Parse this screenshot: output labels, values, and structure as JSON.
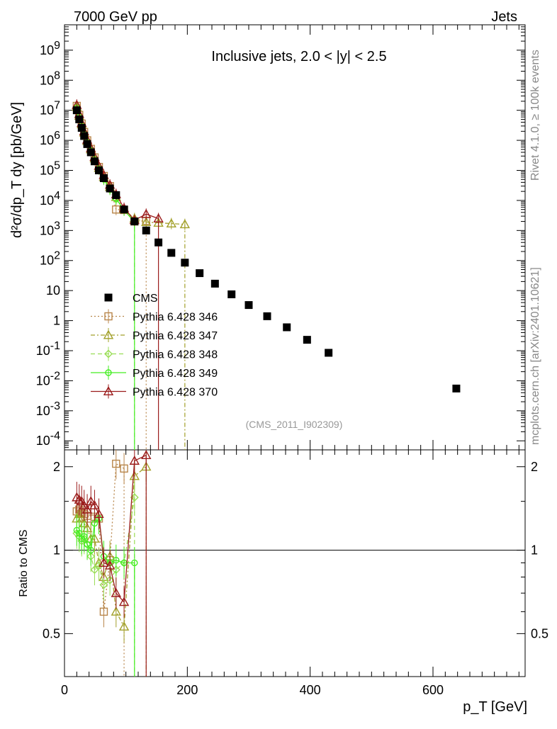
{
  "header": {
    "left": "7000 GeV pp",
    "right": "Jets"
  },
  "side_labels": {
    "rivet": "Rivet 4.1.0, ≥ 100k events",
    "mcplots": "mcplots.cern.ch [arXiv:2401.10621]"
  },
  "chart_data": {
    "type": "scatter",
    "title": "Inclusive jets, 2.0 < |y| < 2.5",
    "reference": "(CMS_2011_I902309)",
    "xlabel": "p_T [GeV]",
    "ylabel": "d²σ/dp_T dy [pb/GeV]",
    "ratio_ylabel": "Ratio to CMS",
    "xlim": [
      0,
      750
    ],
    "ylim": [
      5e-05,
      7000000000
    ],
    "ratio_ylim": [
      0.35,
      2.3
    ],
    "x_ticks": [
      "0",
      "200",
      "400",
      "600"
    ],
    "y_ticks": [
      "10^9",
      "10^8",
      "10^7",
      "10^6",
      "10^5",
      "10^4",
      "10^3",
      "10^2",
      "10",
      "1",
      "10^-1",
      "10^-2",
      "10^-3",
      "10^-4"
    ],
    "ratio_ticks": [
      "2",
      "1",
      "0.5"
    ],
    "legend": [
      "CMS",
      "Pythia 6.428 346",
      "Pythia 6.428 347",
      "Pythia 6.428 348",
      "Pythia 6.428 349",
      "Pythia 6.428 370"
    ],
    "cms": {
      "name": "CMS",
      "x": [
        20,
        24,
        28,
        32,
        37,
        43,
        49,
        56,
        64,
        74,
        84,
        97,
        114,
        133,
        153,
        174,
        196,
        220,
        245,
        272,
        300,
        330,
        362,
        395,
        430,
        468,
        507,
        548,
        592,
        638,
        686
      ],
      "y": [
        10000000,
        5000000,
        2600000,
        1400000,
        750000,
        400000,
        200000,
        100000,
        55000,
        25000,
        15000,
        5000,
        2000,
        1000,
        400,
        180,
        85,
        38,
        17,
        7.5,
        3.3,
        1.4,
        0.6,
        0.23,
        0.085,
        null,
        null,
        null,
        null,
        0.0055,
        null
      ]
    },
    "series": [
      {
        "name": "Pythia 6.428 346",
        "color": "#b8864b",
        "marker": "square",
        "dash": "2,3",
        "x": [
          20,
          24,
          28,
          32,
          37,
          43,
          49,
          56,
          64,
          74,
          84,
          97,
          114,
          133
        ],
        "y": [
          14000000,
          7000000,
          3600000,
          1900000,
          1000000,
          520000,
          270000,
          130000,
          65000,
          30000,
          5000,
          4800,
          2000,
          2100
        ],
        "ratio_x": [
          20,
          24,
          28,
          32,
          37,
          43,
          49,
          56,
          64,
          74,
          84,
          97
        ],
        "ratio": [
          1.38,
          1.4,
          1.36,
          1.35,
          1.33,
          1.3,
          1.32,
          1.3,
          0.6,
          0.92,
          2.05,
          1.97
        ]
      },
      {
        "name": "Pythia 6.428 347",
        "color": "#a2a02a",
        "marker": "triangle",
        "dash": "6,3,2,3",
        "x": [
          20,
          24,
          28,
          32,
          37,
          43,
          49,
          56,
          64,
          74,
          84,
          97,
          114,
          133,
          153,
          174,
          196
        ],
        "y": [
          13000000,
          6500000,
          3400000,
          1800000,
          950000,
          500000,
          250000,
          120000,
          60000,
          28000,
          13000,
          5000,
          2500,
          1900,
          1800,
          1700,
          1600
        ],
        "ratio_x": [
          20,
          24,
          28,
          32,
          37,
          43,
          49,
          56,
          64,
          74,
          84,
          97,
          114,
          133
        ],
        "ratio": [
          1.3,
          1.35,
          1.3,
          1.25,
          1.2,
          1.1,
          1.1,
          0.9,
          0.8,
          0.95,
          0.6,
          0.53,
          1.85,
          2.0
        ]
      },
      {
        "name": "Pythia 6.428 348",
        "color": "#99dd55",
        "marker": "diamond",
        "dash": "6,4",
        "x": [
          20,
          24,
          28,
          32,
          37,
          43,
          49,
          56,
          64,
          74,
          84,
          97,
          114
        ],
        "y": [
          11500000,
          6000000,
          3000000,
          1600000,
          850000,
          450000,
          230000,
          110000,
          50000,
          23000,
          11000,
          4700,
          2200
        ],
        "ratio_x": [
          20,
          24,
          28,
          32,
          37,
          43,
          49,
          56,
          64,
          74,
          84,
          97,
          114
        ],
        "ratio": [
          1.15,
          1.12,
          1.08,
          1.1,
          1.05,
          0.95,
          0.85,
          0.88,
          0.75,
          0.78,
          0.85,
          0.9,
          1.55
        ]
      },
      {
        "name": "Pythia 6.428 349",
        "color": "#44ee22",
        "marker": "circle",
        "dash": "",
        "x": [
          20,
          24,
          28,
          32,
          37,
          43,
          49,
          56,
          64,
          74,
          84,
          97,
          114
        ],
        "y": [
          12000000,
          6200000,
          3100000,
          1650000,
          880000,
          460000,
          240000,
          115000,
          52000,
          24000,
          11500,
          4800,
          1900
        ],
        "ratio_x": [
          20,
          24,
          28,
          32,
          37,
          43,
          49,
          56,
          64,
          74,
          84,
          97,
          114
        ],
        "ratio": [
          1.18,
          1.15,
          1.1,
          1.12,
          1.05,
          1.0,
          1.25,
          1.3,
          0.95,
          0.9,
          0.92,
          0.9,
          0.9
        ]
      },
      {
        "name": "Pythia 6.428 370",
        "color": "#9b1c1c",
        "marker": "triangle",
        "dash": "",
        "x": [
          20,
          24,
          28,
          32,
          37,
          43,
          49,
          56,
          64,
          74,
          84,
          97,
          114,
          133,
          153
        ],
        "y": [
          15000000,
          7500000,
          3800000,
          2000000,
          1050000,
          550000,
          280000,
          140000,
          70000,
          33000,
          16000,
          5500,
          2200,
          3500,
          2500
        ],
        "ratio_x": [
          20,
          24,
          28,
          32,
          37,
          43,
          49,
          56,
          64,
          74,
          84,
          97,
          114,
          133
        ],
        "ratio": [
          1.55,
          1.52,
          1.5,
          1.45,
          1.4,
          1.5,
          1.45,
          1.35,
          0.9,
          0.88,
          0.7,
          0.65,
          2.1,
          2.2
        ]
      }
    ]
  }
}
